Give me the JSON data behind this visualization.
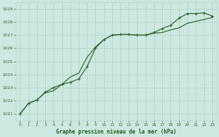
{
  "bg_color": "#cde8e0",
  "grid_color": "#b0d4c8",
  "line_color": "#2d6a2d",
  "title": "Graphe pression niveau de la mer (hPa)",
  "title_color": "#1a5e1a",
  "xlim": [
    -0.5,
    23.5
  ],
  "ylim": [
    1020.5,
    1029.5
  ],
  "yticks": [
    1021,
    1022,
    1023,
    1024,
    1025,
    1026,
    1027,
    1028,
    1029
  ],
  "xticks": [
    0,
    1,
    2,
    3,
    4,
    5,
    6,
    7,
    8,
    9,
    10,
    11,
    12,
    13,
    14,
    15,
    16,
    17,
    18,
    19,
    20,
    21,
    22,
    23
  ],
  "line1_x": [
    0,
    1,
    2,
    3,
    4,
    5,
    6,
    7,
    8,
    9,
    10,
    11,
    12,
    13,
    14,
    15,
    16,
    17,
    18,
    19,
    20,
    21,
    22,
    23
  ],
  "line1_y": [
    1021.0,
    1021.8,
    1022.05,
    1022.6,
    1022.75,
    1023.25,
    1023.8,
    1024.1,
    1025.3,
    1026.1,
    1026.65,
    1027.0,
    1027.05,
    1027.05,
    1027.0,
    1027.0,
    1027.15,
    1027.2,
    1027.4,
    1027.55,
    1027.9,
    1028.05,
    1028.2,
    1028.35
  ],
  "line2_x": [
    0,
    1,
    2,
    3,
    4,
    5,
    6,
    7,
    8,
    9,
    10,
    11,
    12,
    13,
    14,
    15,
    16,
    17,
    18,
    19,
    20,
    21,
    22,
    23
  ],
  "line2_y": [
    1021.0,
    1021.8,
    1022.05,
    1022.65,
    1023.0,
    1023.25,
    1023.4,
    1023.65,
    1024.6,
    1026.0,
    1026.65,
    1027.0,
    1027.05,
    1027.05,
    1027.0,
    1027.0,
    1027.2,
    1027.5,
    1027.75,
    1028.3,
    1028.65,
    1028.65,
    1028.7,
    1028.45
  ]
}
